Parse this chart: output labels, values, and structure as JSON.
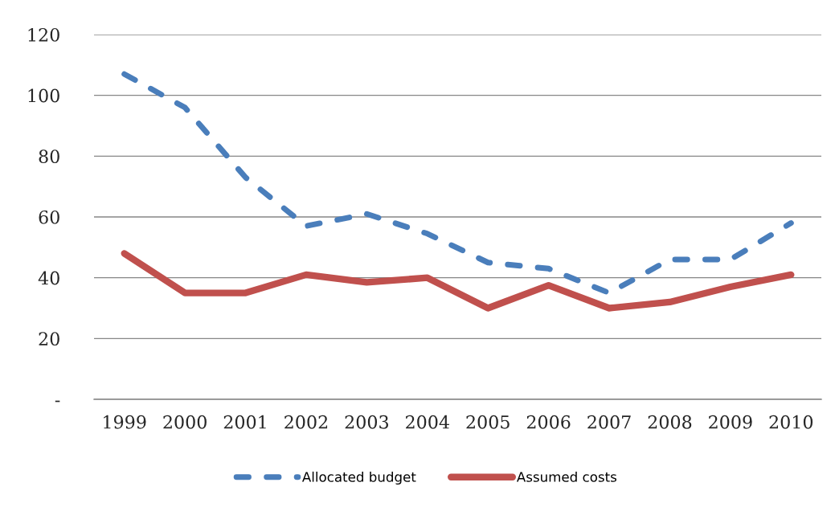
{
  "chart_data": {
    "type": "line",
    "categories": [
      "1999",
      "2000",
      "2001",
      "2002",
      "2003",
      "2004",
      "2005",
      "2006",
      "2007",
      "2008",
      "2009",
      "2010"
    ],
    "ylim": [
      0,
      120
    ],
    "yticks": [
      {
        "value": 0,
        "label": "-"
      },
      20,
      40,
      60,
      80,
      100,
      120
    ],
    "grid": "y",
    "legend": "bottom",
    "series": [
      {
        "name": "Allocated budget",
        "color": "#4a7ebb",
        "line_style": "dashed",
        "values": [
          107,
          96,
          73,
          57,
          61,
          54.5,
          45,
          43,
          35,
          46,
          46,
          58
        ]
      },
      {
        "name": "Assumed costs",
        "color": "#c0504d",
        "line_style": "solid",
        "values": [
          48,
          35,
          35,
          41,
          38.5,
          40,
          30,
          37.5,
          30,
          32,
          37,
          41
        ]
      }
    ]
  }
}
